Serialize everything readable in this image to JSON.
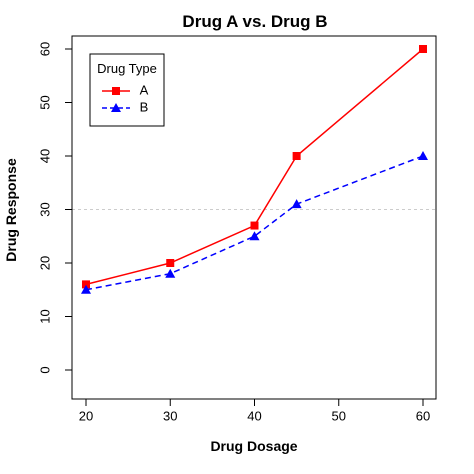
{
  "chart_data": {
    "type": "line",
    "title": "Drug A vs. Drug B",
    "xlabel": "Drug Dosage",
    "ylabel": "Drug Response",
    "xlim": [
      20,
      60
    ],
    "ylim": [
      0,
      60
    ],
    "x_ticks": [
      "20",
      "30",
      "40",
      "50",
      "60"
    ],
    "y_ticks": [
      "0",
      "10",
      "20",
      "30",
      "40",
      "50",
      "60"
    ],
    "reference_line": {
      "y": 30,
      "style": "dotted",
      "color": "#cccccc"
    },
    "legend": {
      "title": "Drug Type",
      "placement": "top-left"
    },
    "series": [
      {
        "name": "A",
        "color": "#ff0000",
        "line_style": "solid",
        "marker": "square",
        "x": [
          20,
          30,
          40,
          45,
          60
        ],
        "values": [
          16,
          20,
          27,
          40,
          60
        ]
      },
      {
        "name": "B",
        "color": "#0000ff",
        "line_style": "dashed",
        "marker": "triangle",
        "x": [
          20,
          30,
          40,
          45,
          60
        ],
        "values": [
          15,
          18,
          25,
          31,
          40
        ]
      }
    ]
  }
}
